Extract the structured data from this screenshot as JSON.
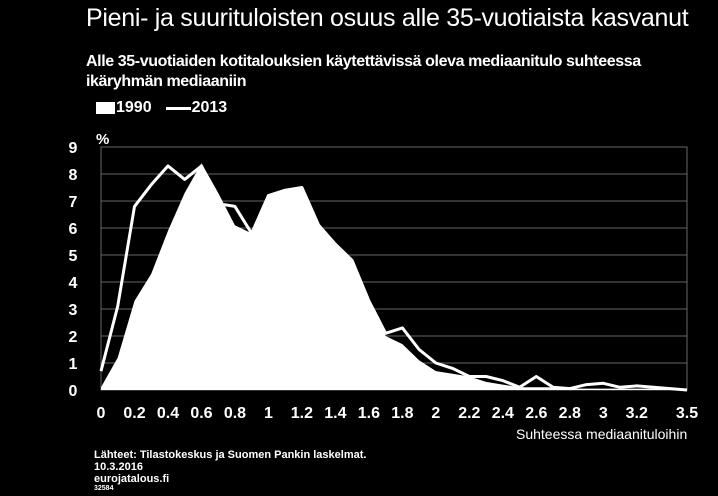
{
  "title": "Pieni- ja suurituloisten osuus alle 35-vuotiaista kasvanut",
  "subtitle": "Alle 35-vuotiaiden kotitalouksien käytettävissä oleva mediaanitulo suhteessa ikäryhmän mediaaniin",
  "source": {
    "line1": "Lähteet: Tilastokeskus ja Suomen Pankin laskelmat.",
    "line2": "10.3.2016",
    "line3": "eurojatalous.fi",
    "line4": "32584"
  },
  "colors": {
    "background": "#000000",
    "series": "#ffffff",
    "grid": "#666666"
  },
  "chart_data": {
    "type": "area",
    "ylabel": "%",
    "xlabel": "Suhteessa mediaanituloihin",
    "xlim": [
      0,
      3.5
    ],
    "ylim": [
      0,
      9
    ],
    "y_ticks": [
      "0",
      "1",
      "2",
      "3",
      "4",
      "5",
      "6",
      "7",
      "8",
      "9"
    ],
    "x_ticks": [
      "0",
      "0.2",
      "0.4",
      "0.6",
      "0.8",
      "1",
      "1.2",
      "1.4",
      "1.6",
      "1.8",
      "2",
      "2.2",
      "2.4",
      "2.6",
      "2.8",
      "3",
      "3.2",
      "3.5"
    ],
    "grid": true,
    "legend_position": "top-left",
    "x": [
      0,
      0.1,
      0.2,
      0.3,
      0.4,
      0.5,
      0.6,
      0.7,
      0.8,
      0.9,
      1.0,
      1.1,
      1.2,
      1.3,
      1.4,
      1.5,
      1.6,
      1.7,
      1.8,
      1.9,
      2.0,
      2.1,
      2.2,
      2.3,
      2.4,
      2.5,
      2.6,
      2.7,
      2.8,
      2.9,
      3.0,
      3.1,
      3.2,
      3.3,
      3.4,
      3.5
    ],
    "series": [
      {
        "name": "1990",
        "style": "area",
        "values": [
          0.1,
          1.2,
          3.3,
          4.3,
          5.9,
          7.3,
          8.4,
          7.3,
          6.1,
          5.8,
          7.2,
          7.4,
          7.5,
          6.1,
          5.4,
          4.8,
          3.3,
          2.0,
          1.7,
          1.1,
          0.7,
          0.6,
          0.5,
          0.3,
          0.2,
          0.1,
          0.1,
          0.1,
          0.05,
          0.05,
          0.05,
          0.05,
          0.05,
          0.05,
          0.05,
          0.05
        ]
      },
      {
        "name": "2013",
        "style": "line",
        "values": [
          0.7,
          3.1,
          6.8,
          7.6,
          8.3,
          7.8,
          8.3,
          6.9,
          6.8,
          5.8,
          7.2,
          7.4,
          7.5,
          6.1,
          5.4,
          4.8,
          3.3,
          2.1,
          2.3,
          1.5,
          1.0,
          0.8,
          0.5,
          0.5,
          0.35,
          0.1,
          0.5,
          0.1,
          0.05,
          0.2,
          0.25,
          0.1,
          0.15,
          0.1,
          0.05,
          0.0
        ]
      }
    ]
  }
}
